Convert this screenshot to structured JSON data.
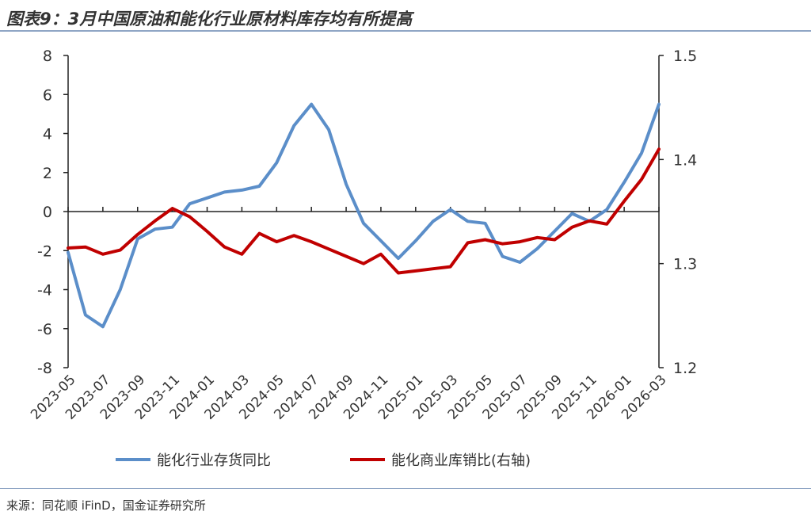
{
  "header": {
    "title": "图表9：3月中国原油和能化行业原材料库存均有所提高"
  },
  "footer": {
    "source": "来源：同花顺 iFinD，国金证券研究所"
  },
  "chart_data": {
    "type": "line",
    "title": "图表9：3月中国原油和能化行业原材料库存均有所提高",
    "x": [
      "2023-05",
      "2023-06",
      "2023-07",
      "2023-08",
      "2023-09",
      "2023-10",
      "2023-11",
      "2023-12",
      "2024-01",
      "2024-02",
      "2024-03",
      "2024-04",
      "2024-05",
      "2024-06",
      "2024-07",
      "2024-08",
      "2024-09",
      "2024-10",
      "2024-11",
      "2024-12",
      "2025-01",
      "2025-02",
      "2025-03",
      "2025-04",
      "2025-05",
      "2025-06",
      "2025-07",
      "2025-08",
      "2025-09",
      "2025-10",
      "2025-11",
      "2025-12",
      "2026-01",
      "2026-02",
      "2026-03"
    ],
    "x_tick_labels": [
      "2023-05",
      "2023-07",
      "2023-09",
      "2023-11",
      "2024-01",
      "2024-03",
      "2024-05",
      "2024-07",
      "2024-09",
      "2024-11",
      "2025-01",
      "2025-03",
      "2025-05",
      "2025-07",
      "2025-09",
      "2025-11",
      "2026-01",
      "2026-03"
    ],
    "y_left": {
      "ylim": [
        -8,
        8
      ],
      "ticks": [
        "8",
        "6",
        "4",
        "2",
        "0",
        "-2",
        "-4",
        "-6",
        "-8"
      ]
    },
    "y_right": {
      "ylim": [
        1.2,
        1.5
      ],
      "ticks": [
        "1.5",
        "1.4",
        "1.3",
        "1.2"
      ]
    },
    "series": [
      {
        "name": "能化行业存货同比",
        "axis": "left",
        "color": "#5b8ec9",
        "values": [
          -2.1,
          -5.3,
          -5.9,
          -4.0,
          -1.4,
          -0.9,
          -0.8,
          0.4,
          0.7,
          1.0,
          1.1,
          1.3,
          2.5,
          4.4,
          5.5,
          4.2,
          1.4,
          -0.6,
          -1.5,
          -2.4,
          -1.5,
          -0.5,
          0.1,
          -0.5,
          -0.6,
          -2.3,
          -2.6,
          -1.9,
          -1.0,
          -0.1,
          -0.5,
          0.1,
          1.5,
          3.0,
          5.5
        ]
      },
      {
        "name": "能化商业库销比(右轴)",
        "axis": "right",
        "color": "#c00000",
        "values": [
          1.315,
          1.316,
          1.309,
          1.313,
          1.328,
          1.341,
          1.353,
          1.345,
          1.331,
          1.316,
          1.309,
          1.329,
          1.321,
          1.327,
          1.321,
          1.314,
          1.307,
          1.3,
          1.309,
          1.291,
          1.293,
          1.295,
          1.297,
          1.32,
          1.323,
          1.319,
          1.321,
          1.325,
          1.323,
          1.335,
          1.341,
          1.338,
          1.36,
          1.381,
          1.41
        ]
      }
    ],
    "legend": "bottom",
    "grid": false
  }
}
